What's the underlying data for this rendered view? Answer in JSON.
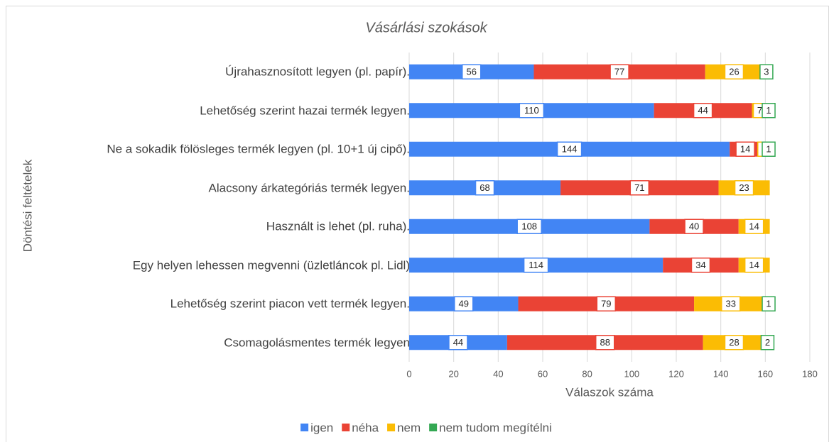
{
  "chart_data": {
    "type": "stacked_bar_horizontal",
    "title": "Vásárlási szokások",
    "xlabel": "Válaszok száma",
    "ylabel": "Döntési feltételek",
    "categories": [
      "Újrahasznosított legyen (pl. papír).",
      "Lehetőség szerint hazai termék legyen.",
      "Ne a sokadik fölösleges termék legyen (pl. 10+1 új cipő).",
      "Alacsony árkategóriás termék legyen.",
      "Használt is lehet (pl. ruha).",
      "Egy helyen lehessen megvenni (üzletláncok pl. Lidl)",
      "Lehetőség szerint piacon vett termék legyen.",
      "Csomagolásmentes termék legyen"
    ],
    "series": [
      {
        "name": "igen",
        "color": "#4285f4",
        "values": [
          56,
          110,
          144,
          68,
          108,
          114,
          49,
          44
        ]
      },
      {
        "name": "néha",
        "color": "#ea4335",
        "values": [
          77,
          44,
          14,
          71,
          40,
          34,
          79,
          88
        ]
      },
      {
        "name": "nem",
        "color": "#fbbc04",
        "values": [
          26,
          7,
          3,
          23,
          14,
          14,
          33,
          28
        ]
      },
      {
        "name": "nem tudom megítélni",
        "color": "#34a853",
        "values": [
          3,
          1,
          1,
          0,
          0,
          0,
          1,
          2
        ]
      }
    ],
    "xlim": [
      0,
      180
    ],
    "xticks": [
      0,
      20,
      40,
      60,
      80,
      100,
      120,
      140,
      160,
      180
    ],
    "grid": true,
    "legend": "bottom"
  }
}
